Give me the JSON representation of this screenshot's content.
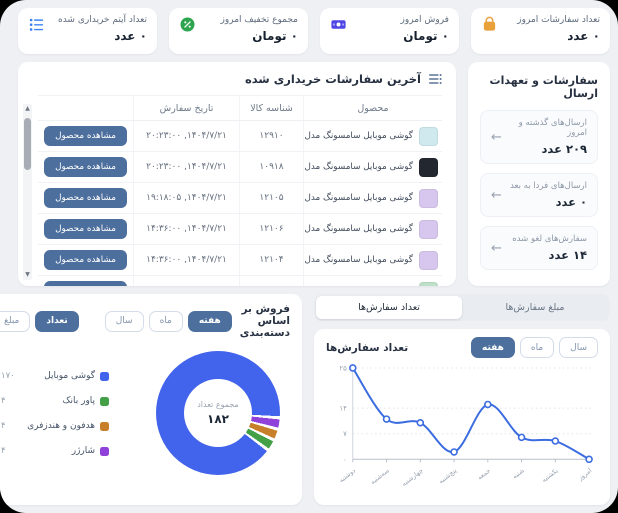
{
  "stats": {
    "cards": [
      {
        "title": "تعداد سفارشات امروز",
        "value": "۰ عدد",
        "icon": "shopping-bag-icon",
        "icon_color": "#e9a23b"
      },
      {
        "title": "فروش امروز",
        "value": "۰ تومان",
        "icon": "banknote-icon",
        "icon_color": "#4f46e5"
      },
      {
        "title": "مجموع تخفیف امروز",
        "value": "۰ تومان",
        "icon": "discount-percent-icon",
        "icon_color": "#2da44e"
      },
      {
        "title": "تعداد آیتم خریداری شده",
        "value": "۰ عدد",
        "icon": "ordered-list-icon",
        "icon_color": "#3b82f6"
      }
    ]
  },
  "orders": {
    "title": "آخرین سفارشات خریداری شده",
    "columns": [
      "محصول",
      "شناسه کالا",
      "تاریخ سفارش"
    ],
    "action_label": "مشاهده محصول",
    "rows": [
      {
        "product": "گوشی موبایل سامسونگ مدل Galaxy A۱۶ ۴G دو ...",
        "id": "۱۲۹۱۰",
        "date": "۱۴۰۴/۷/۲۱, ۲۰:۲۳:۰۰",
        "thumb": "#cfe9ee"
      },
      {
        "product": "گوشی موبایل سامسونگ مدل Galaxy A۱۶ ۴G دو ...",
        "id": "۱۰۹۱۸",
        "date": "۱۴۰۴/۷/۲۱, ۲۰:۲۳:۰۰",
        "thumb": "#23272f"
      },
      {
        "product": "گوشی موبایل سامسونگ مدل Galaxy A۰۷ دو سی...",
        "id": "۱۲۱۰۵",
        "date": "۱۴۰۴/۷/۲۱, ۱۹:۱۸:۰۵",
        "thumb": "#d7c7ee"
      },
      {
        "product": "گوشی موبایل سامسونگ مدل Galaxy A۰۷ ۴G ظر...",
        "id": "۱۲۱۰۶",
        "date": "۱۴۰۴/۷/۲۱, ۱۴:۳۶:۰۰",
        "thumb": "#d7c7ee"
      },
      {
        "product": "گوشی موبایل سامسونگ مدل Galaxy A۰۷ دو سی...",
        "id": "۱۲۱۰۴",
        "date": "۱۴۰۴/۷/۲۱, ۱۴:۳۶:۰۰",
        "thumb": "#d7c7ee"
      },
      {
        "product": "",
        "id": "",
        "date": "",
        "thumb": "#bfe0c8"
      }
    ]
  },
  "shipments": {
    "title": "سفارشات و تعهدات ارسال",
    "items": [
      {
        "label": "ارسال‌های گذشته و امروز",
        "value": "۲۰۹ عدد"
      },
      {
        "label": "ارسال‌های فردا به بعد",
        "value": "۰ عدد"
      },
      {
        "label": "سفارش‌های لغو شده",
        "value": "۱۴ عدد"
      }
    ]
  },
  "category_sales": {
    "title": "فروش بر اساس دسته‌بندی",
    "period_tabs": [
      {
        "label": "هفته",
        "active": true
      },
      {
        "label": "ماه",
        "active": false
      },
      {
        "label": "سال",
        "active": false
      }
    ],
    "metric_tabs": [
      {
        "label": "تعداد",
        "active": true
      },
      {
        "label": "مبلغ",
        "active": false
      }
    ]
  },
  "orders_chart": {
    "segmented": [
      {
        "label": "مبلغ سفارش‌ها",
        "active": false
      },
      {
        "label": "تعداد سفارش‌ها",
        "active": true
      }
    ],
    "card_title": "تعداد سفارش‌ها",
    "period_tabs": [
      {
        "label": "هفته",
        "active": true
      },
      {
        "label": "ماه",
        "active": false
      },
      {
        "label": "سال",
        "active": false
      }
    ]
  },
  "chart_data": [
    {
      "type": "pie",
      "style": "donut",
      "title": "فروش بر اساس دسته‌بندی",
      "categories": [
        "گوشی موبایل",
        "پاور بانک",
        "هدفون و هندزفری",
        "شارژر"
      ],
      "values": [
        170,
        4,
        4,
        4
      ],
      "display_values": [
        "۱۷۰",
        "۴",
        "۴",
        "۴"
      ],
      "colors": [
        "#4263eb",
        "#43a047",
        "#c87f2a",
        "#8f41d9"
      ],
      "center_label": "مجموع تعداد",
      "center_value": "۱۸۲",
      "total": 182,
      "legend_position": "left"
    },
    {
      "type": "line",
      "title": "تعداد سفارش‌ها",
      "x": [
        "دوشنبه",
        "سه‌شنبه",
        "چهارشنبه",
        "پنج‌شنبه",
        "جمعه",
        "شنبه",
        "یکشنبه",
        "امروز"
      ],
      "values": [
        25,
        11,
        10,
        2,
        15,
        6,
        5,
        0
      ],
      "ylim": [
        0,
        25
      ],
      "yticks": [
        0,
        7,
        14,
        25
      ],
      "ytick_labels": [
        "۰",
        "۷",
        "۱۴",
        "۲۵"
      ],
      "line_color": "#3b6ce0",
      "grid": "dotted-horizontal"
    }
  ]
}
